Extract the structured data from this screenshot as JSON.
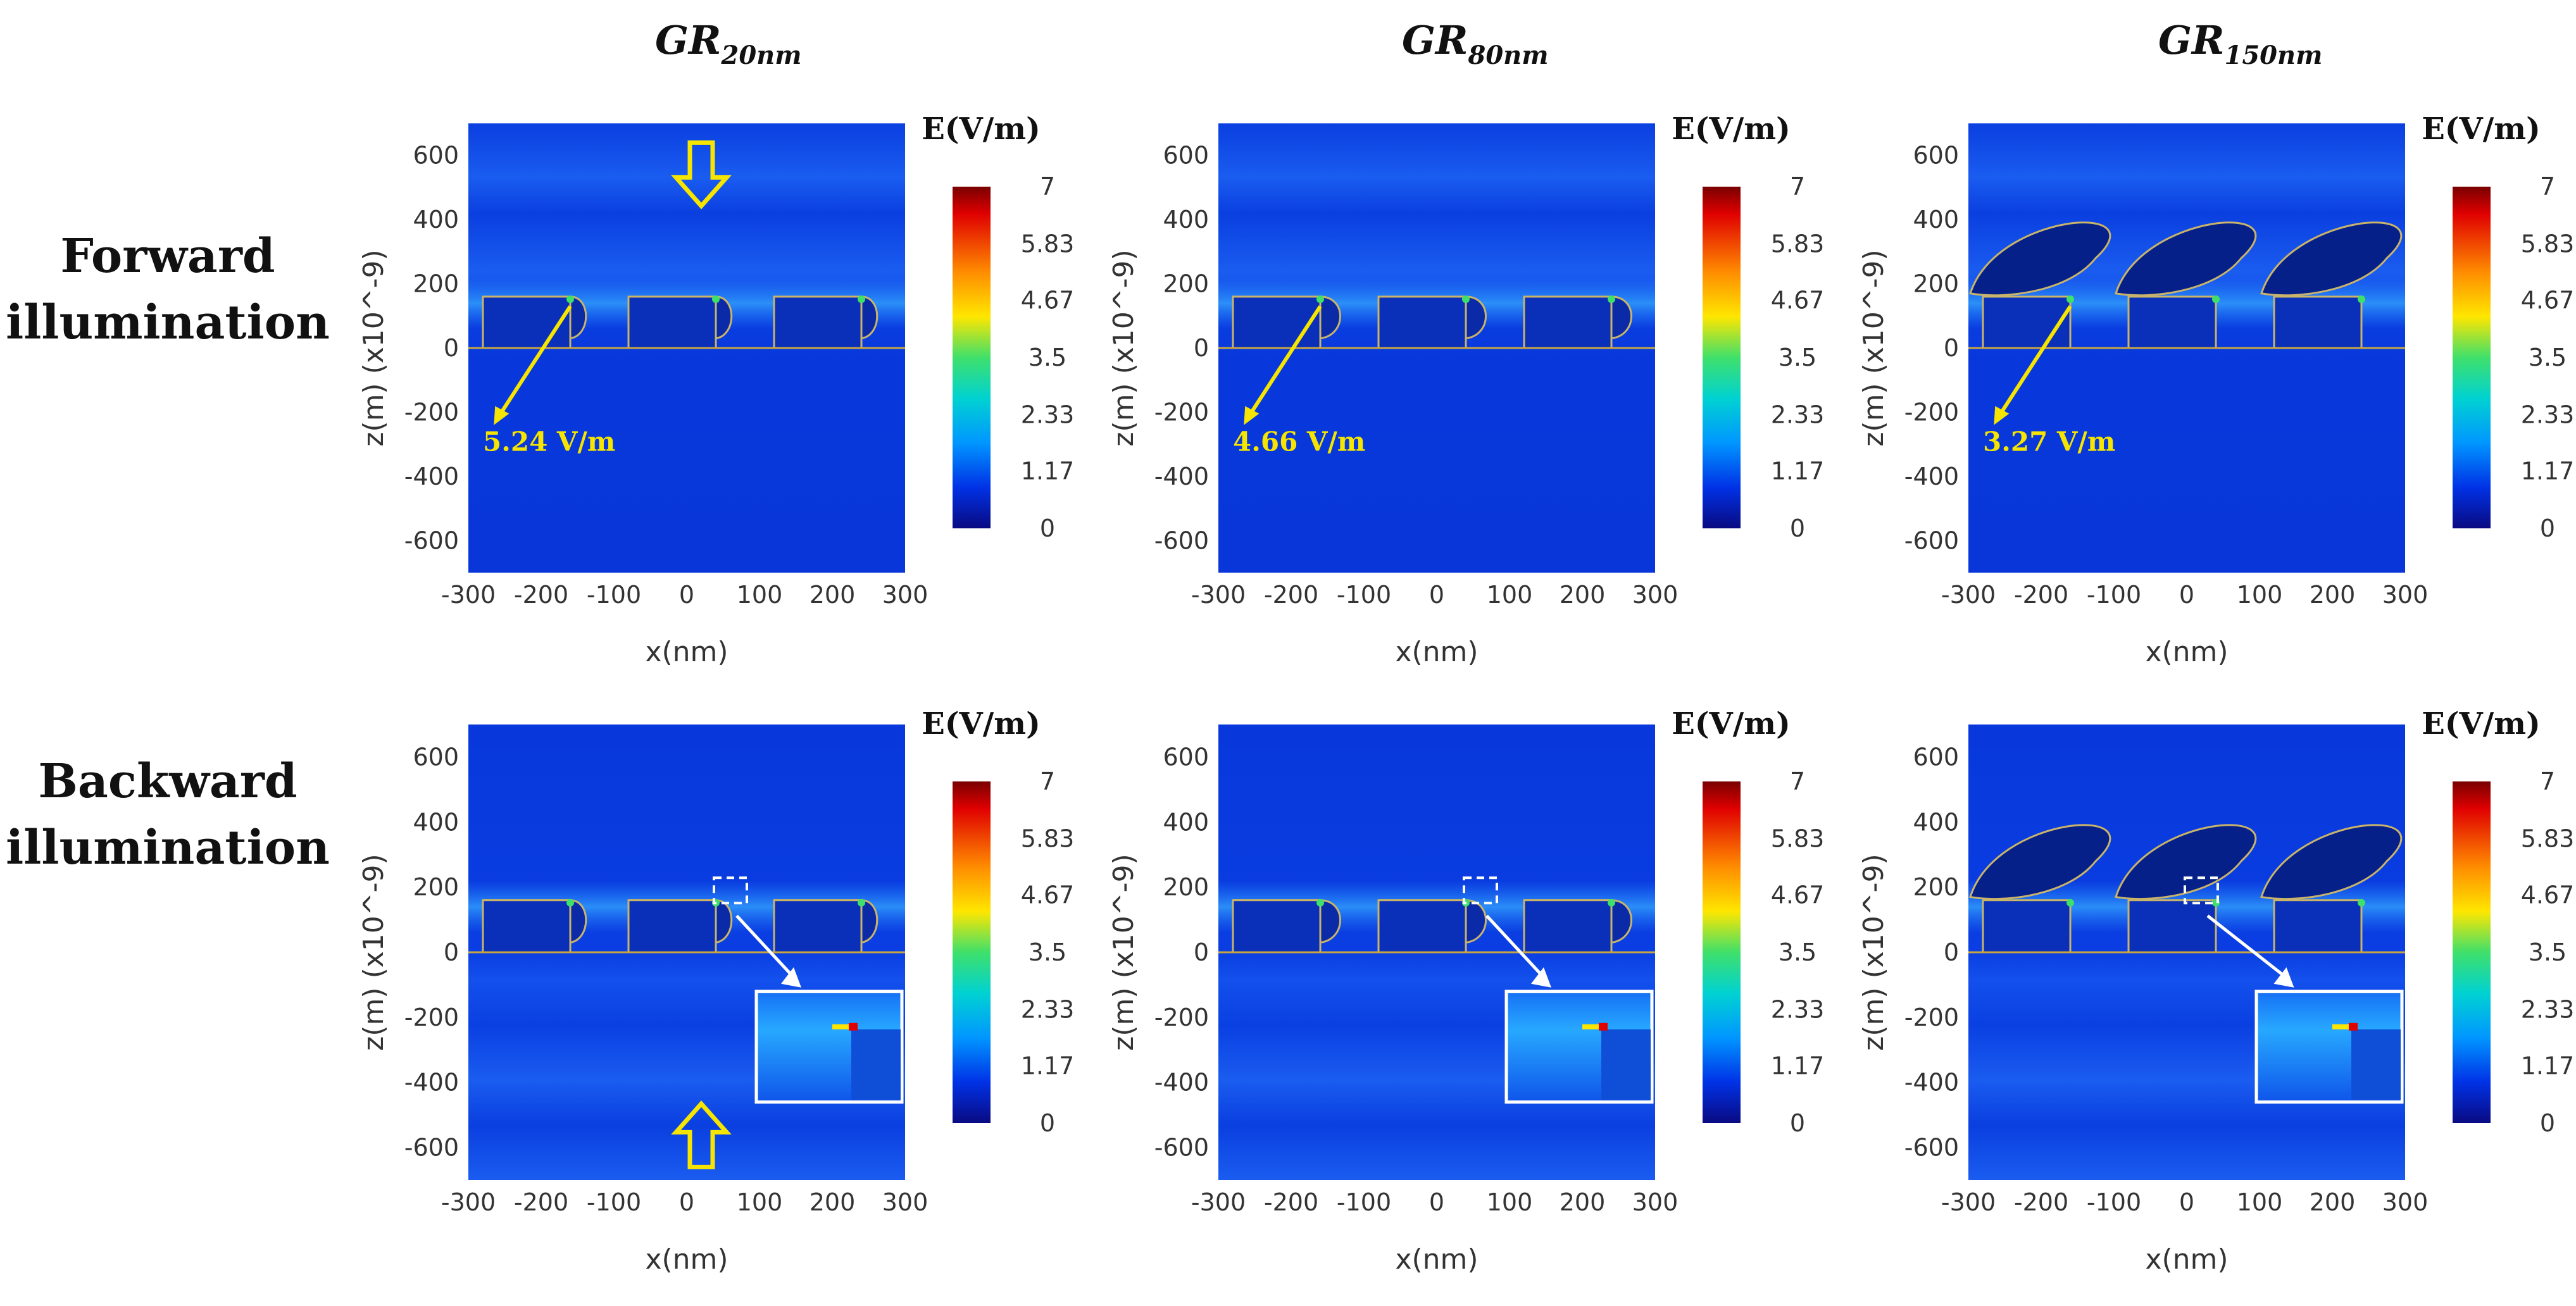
{
  "chart_data": {
    "type": "heatmap",
    "columns": [
      {
        "title": "GR",
        "subscript": "20nm"
      },
      {
        "title": "GR",
        "subscript": "80nm"
      },
      {
        "title": "GR",
        "subscript": "150nm"
      }
    ],
    "rows": [
      {
        "label_line1": "Forward",
        "label_line2": "illumination"
      },
      {
        "label_line1": "Backward",
        "label_line2": "illumination"
      }
    ],
    "xlabel": "x(nm)",
    "ylabel": "z(m) (x10^-9)",
    "xlim": [
      -300,
      300
    ],
    "ylim": [
      -700,
      700
    ],
    "x_ticks": [
      "-300",
      "-200",
      "-100",
      "0",
      "100",
      "200",
      "300"
    ],
    "y_ticks": [
      "600",
      "400",
      "200",
      "0",
      "-200",
      "-400",
      "-600"
    ],
    "colorbar": {
      "title": "E(V/m)",
      "range": [
        0,
        7
      ],
      "ticks": [
        "7",
        "5.83",
        "4.67",
        "3.5",
        "2.33",
        "1.17",
        "0"
      ],
      "colors": [
        "#7a0000",
        "#e00000",
        "#ff8c00",
        "#ffe600",
        "#3fe06a",
        "#00d2d2",
        "#0096ff",
        "#0032e6",
        "#0a0a82"
      ]
    },
    "annotations": [
      {
        "panel": "forward-20nm",
        "text": "5.24 V/m"
      },
      {
        "panel": "forward-80nm",
        "text": "4.66 V/m"
      },
      {
        "panel": "forward-150nm",
        "text": "3.27 V/m"
      }
    ]
  }
}
